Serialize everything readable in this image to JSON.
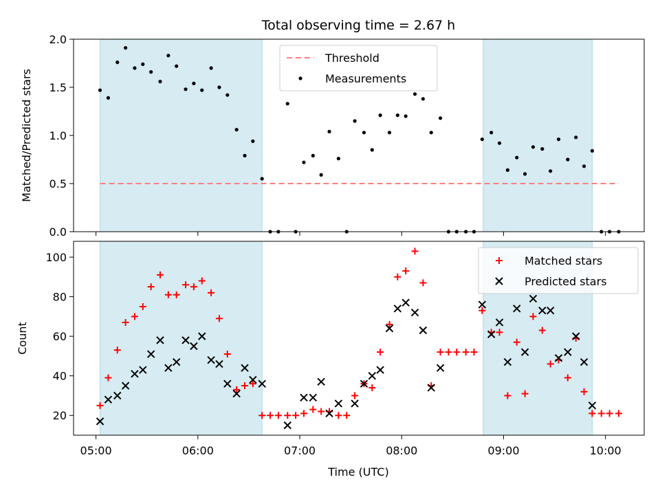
{
  "chart_data": [
    {
      "type": "scatter",
      "title": "Total observing time = 2.67 h",
      "ylabel": "Matched/Predicted stars",
      "xlabel": "",
      "xlim": [
        4.78,
        10.38
      ],
      "ylim": [
        0.0,
        2.0
      ],
      "yticks": [
        0.0,
        0.5,
        1.0,
        1.5,
        2.0
      ],
      "ytick_labels": [
        "0.0",
        "0.5",
        "1.0",
        "1.5",
        "2.0"
      ],
      "shaded_intervals": [
        [
          5.04,
          6.63
        ],
        [
          8.8,
          9.87
        ]
      ],
      "shade_color": "#add8e6",
      "legend_position": "upper center",
      "threshold": {
        "name": "Threshold",
        "value": 0.5,
        "x_range": [
          5.04,
          10.13
        ],
        "color": "#ff7f7f",
        "style": "dashed"
      },
      "series": [
        {
          "name": "Measurements",
          "color": "#000000",
          "marker": "dot",
          "x": [
            5.04,
            5.12,
            5.21,
            5.29,
            5.38,
            5.46,
            5.54,
            5.63,
            5.71,
            5.79,
            5.88,
            5.96,
            6.04,
            6.13,
            6.21,
            6.29,
            6.38,
            6.46,
            6.54,
            6.63,
            6.71,
            6.79,
            6.88,
            6.96,
            7.04,
            7.13,
            7.21,
            7.29,
            7.38,
            7.46,
            7.54,
            7.63,
            7.71,
            7.79,
            7.88,
            7.96,
            8.04,
            8.13,
            8.21,
            8.29,
            8.38,
            8.46,
            8.54,
            8.63,
            8.71,
            8.79,
            8.88,
            8.96,
            9.04,
            9.13,
            9.21,
            9.29,
            9.38,
            9.46,
            9.54,
            9.63,
            9.71,
            9.79,
            9.87,
            9.96,
            10.04,
            10.13
          ],
          "y": [
            1.47,
            1.39,
            1.76,
            1.91,
            1.7,
            1.74,
            1.66,
            1.56,
            1.83,
            1.72,
            1.48,
            1.54,
            1.47,
            1.7,
            1.5,
            1.42,
            1.06,
            0.79,
            0.94,
            0.55,
            0.0,
            0.0,
            1.33,
            0.0,
            0.72,
            0.79,
            0.59,
            1.04,
            0.76,
            0.0,
            1.15,
            1.03,
            0.85,
            1.21,
            1.03,
            1.21,
            1.2,
            1.43,
            1.38,
            1.03,
            1.18,
            0.0,
            0.0,
            0.0,
            0.0,
            0.96,
            1.03,
            0.92,
            0.64,
            0.77,
            0.6,
            0.88,
            0.86,
            0.63,
            0.96,
            0.75,
            0.98,
            0.68,
            0.84,
            0.0,
            0.0,
            0.0
          ]
        }
      ]
    },
    {
      "type": "scatter",
      "title": "",
      "xlabel": "Time (UTC)",
      "ylabel": "Count",
      "xlim": [
        4.78,
        10.38
      ],
      "ylim": [
        10,
        108
      ],
      "yticks": [
        20,
        40,
        60,
        80,
        100
      ],
      "ytick_labels": [
        "20",
        "40",
        "60",
        "80",
        "100"
      ],
      "xticks": [
        5,
        6,
        7,
        8,
        9,
        10
      ],
      "xtick_labels": [
        "05:00",
        "06:00",
        "07:00",
        "08:00",
        "09:00",
        "10:00"
      ],
      "shaded_intervals": [
        [
          5.04,
          6.63
        ],
        [
          8.8,
          9.87
        ]
      ],
      "shade_color": "#add8e6",
      "legend_position": "upper right",
      "series": [
        {
          "name": "Matched stars",
          "color": "#ff0000",
          "marker": "plus",
          "x": [
            5.04,
            5.12,
            5.21,
            5.29,
            5.38,
            5.46,
            5.54,
            5.63,
            5.71,
            5.79,
            5.88,
            5.96,
            6.04,
            6.13,
            6.21,
            6.29,
            6.38,
            6.46,
            6.54,
            6.63,
            6.71,
            6.79,
            6.88,
            6.96,
            7.04,
            7.13,
            7.21,
            7.29,
            7.38,
            7.46,
            7.54,
            7.63,
            7.71,
            7.79,
            7.88,
            7.96,
            8.04,
            8.13,
            8.21,
            8.29,
            8.38,
            8.46,
            8.54,
            8.63,
            8.71,
            8.79,
            8.88,
            8.96,
            9.04,
            9.13,
            9.21,
            9.29,
            9.38,
            9.46,
            9.54,
            9.63,
            9.71,
            9.79,
            9.87,
            9.96,
            10.04,
            10.13
          ],
          "y": [
            25,
            39,
            53,
            67,
            70,
            75,
            85,
            91,
            81,
            81,
            86,
            85,
            88,
            82,
            69,
            51,
            33,
            35,
            36,
            20,
            20,
            20,
            20,
            20,
            21,
            23,
            22,
            22,
            20,
            20,
            30,
            36,
            34,
            52,
            66,
            90,
            93,
            103,
            87,
            35,
            52,
            52,
            52,
            52,
            52,
            73,
            62,
            62,
            30,
            57,
            31,
            70,
            63,
            46,
            48,
            39,
            59,
            32,
            21,
            21,
            21,
            21
          ]
        },
        {
          "name": "Predicted stars",
          "color": "#000000",
          "marker": "x",
          "x": [
            5.04,
            5.12,
            5.21,
            5.29,
            5.38,
            5.46,
            5.54,
            5.63,
            5.71,
            5.79,
            5.88,
            5.96,
            6.04,
            6.13,
            6.21,
            6.29,
            6.38,
            6.46,
            6.54,
            6.63,
            6.88,
            7.04,
            7.13,
            7.21,
            7.29,
            7.38,
            7.54,
            7.63,
            7.71,
            7.79,
            7.88,
            7.96,
            8.04,
            8.13,
            8.21,
            8.29,
            8.38,
            8.79,
            8.88,
            8.96,
            9.04,
            9.13,
            9.21,
            9.29,
            9.38,
            9.46,
            9.54,
            9.63,
            9.71,
            9.79,
            9.87
          ],
          "y": [
            17,
            28,
            30,
            35,
            41,
            43,
            51,
            58,
            44,
            47,
            58,
            55,
            60,
            48,
            46,
            36,
            31,
            44,
            38,
            36,
            15,
            29,
            29,
            37,
            21,
            26,
            26,
            36,
            40,
            43,
            64,
            74,
            77,
            72,
            63,
            34,
            44,
            76,
            61,
            67,
            47,
            74,
            52,
            79,
            73,
            73,
            49,
            52,
            60,
            47,
            25
          ]
        }
      ]
    }
  ]
}
